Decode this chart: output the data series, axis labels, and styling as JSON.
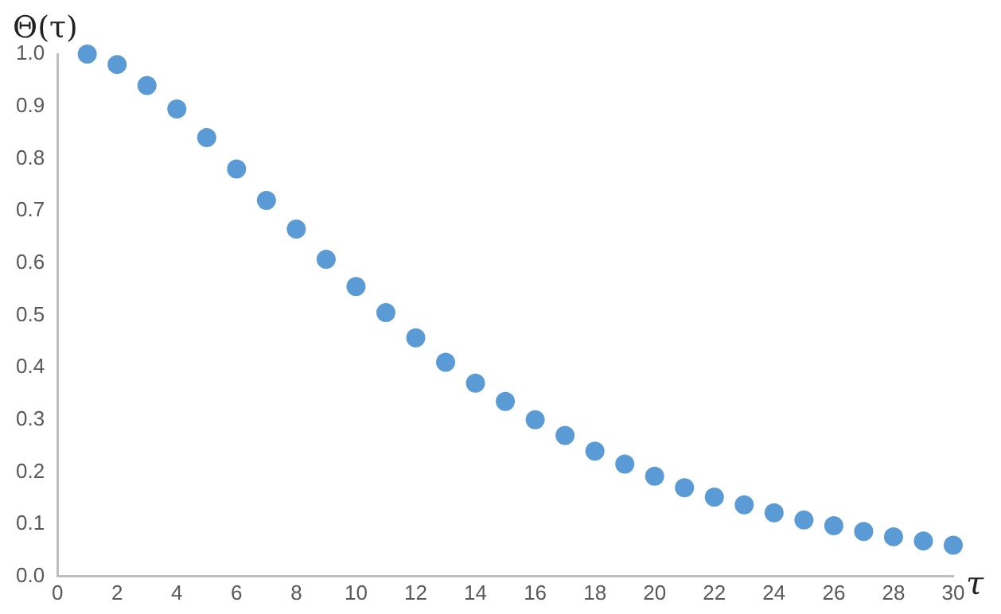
{
  "chart_data": {
    "type": "scatter",
    "xlabel": "τ",
    "ylabel": "Θ(τ)",
    "x": [
      1,
      2,
      3,
      4,
      5,
      6,
      7,
      8,
      9,
      10,
      11,
      12,
      13,
      14,
      15,
      16,
      17,
      18,
      19,
      20,
      21,
      22,
      23,
      24,
      25,
      26,
      27,
      28,
      29,
      30
    ],
    "series": [
      {
        "color": "#5b9bd5",
        "values": [
          1.0,
          0.98,
          0.94,
          0.895,
          0.84,
          0.78,
          0.72,
          0.665,
          0.607,
          0.555,
          0.505,
          0.457,
          0.41,
          0.37,
          0.335,
          0.3,
          0.27,
          0.24,
          0.215,
          0.192,
          0.17,
          0.152,
          0.137,
          0.122,
          0.108,
          0.097,
          0.086,
          0.076,
          0.068,
          0.06
        ]
      }
    ],
    "xlim": [
      0,
      30
    ],
    "xticks": [
      0,
      2,
      4,
      6,
      8,
      10,
      12,
      14,
      16,
      18,
      20,
      22,
      24,
      26,
      28,
      30
    ],
    "ylim": [
      0,
      1
    ],
    "yticks": [
      {
        "value": 0,
        "label": "0.0"
      },
      {
        "value": 0.1,
        "label": "0.1"
      },
      {
        "value": 0.2,
        "label": "0.2"
      },
      {
        "value": 0.3,
        "label": "0.3"
      },
      {
        "value": 0.4,
        "label": "0.4"
      },
      {
        "value": 0.5,
        "label": "0.5"
      },
      {
        "value": 0.6,
        "label": "0.6"
      },
      {
        "value": 0.7,
        "label": "0.7"
      },
      {
        "value": 0.8,
        "label": "0.8"
      },
      {
        "value": 0.9,
        "label": "0.9"
      },
      {
        "value": 1,
        "label": "1.0"
      }
    ],
    "grid": false,
    "legend": false,
    "marker": "circle"
  }
}
